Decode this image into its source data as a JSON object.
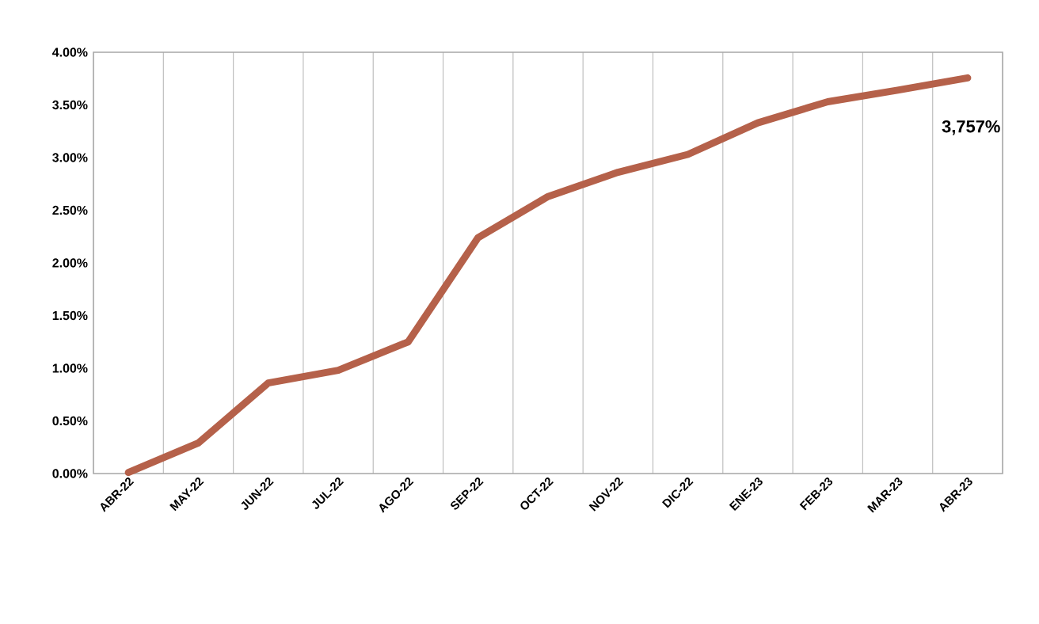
{
  "chart_data": {
    "type": "line",
    "categories": [
      "ABR-22",
      "MAY-22",
      "JUN-22",
      "JUL-22",
      "AGO-22",
      "SEP-22",
      "OCT-22",
      "NOV-22",
      "DIC-22",
      "ENE-23",
      "FEB-23",
      "MAR-23",
      "ABR-23"
    ],
    "series": [
      {
        "color": "#b5614a",
        "values": [
          0.01,
          0.29,
          0.86,
          0.98,
          1.25,
          2.24,
          2.63,
          2.86,
          3.03,
          3.33,
          3.53,
          3.64,
          3.757
        ]
      }
    ],
    "ylim": [
      0,
      4
    ],
    "yticks": [
      {
        "value": 0,
        "label": "0.00%"
      },
      {
        "value": 0.5,
        "label": "0.50%"
      },
      {
        "value": 1,
        "label": "1.00%"
      },
      {
        "value": 1.5,
        "label": "1.50%"
      },
      {
        "value": 2,
        "label": "2.00%"
      },
      {
        "value": 2.5,
        "label": "2.50%"
      },
      {
        "value": 3,
        "label": "3.00%"
      },
      {
        "value": 3.5,
        "label": "3.50%"
      },
      {
        "value": 4,
        "label": "4.00%"
      }
    ],
    "grid": "x",
    "marker": "none",
    "line_style": "solid",
    "annotations": [
      {
        "text": "3,757%",
        "x": "ABR-23",
        "y": 3.757
      }
    ]
  }
}
